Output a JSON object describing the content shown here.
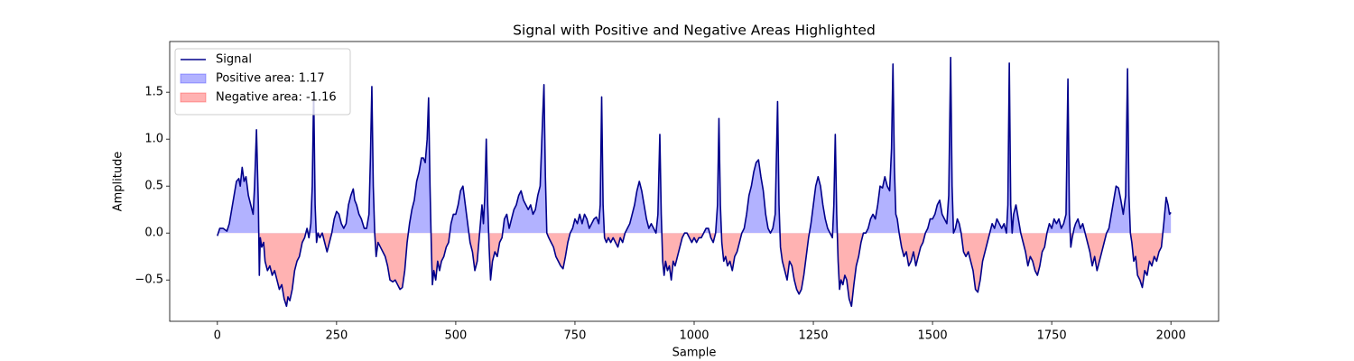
{
  "chart_data": {
    "type": "line",
    "title": "Signal with Positive and Negative Areas Highlighted",
    "x_label": "Sample",
    "y_label": "Amplitude",
    "xlim": [
      -100,
      2100
    ],
    "ylim": [
      -0.94,
      2.04
    ],
    "xticks": [
      0,
      250,
      500,
      750,
      1000,
      1250,
      1500,
      1750,
      2000
    ],
    "yticks": [
      {
        "value": -0.5,
        "label": "−0.5"
      },
      {
        "value": 0,
        "label": "0.0"
      },
      0.5,
      {
        "value": 1,
        "label": "1.0"
      },
      1.5
    ],
    "grid": false,
    "legend": "upper left",
    "series": [
      {
        "name": "Signal",
        "color": "#00008b",
        "x": [
          0,
          5,
          12,
          20,
          25,
          30,
          35,
          40,
          45,
          48,
          52,
          56,
          60,
          65,
          70,
          75,
          78,
          82,
          86,
          88,
          90,
          93,
          97,
          100,
          105,
          110,
          115,
          120,
          125,
          130,
          135,
          140,
          145,
          148,
          152,
          157,
          162,
          167,
          172,
          178,
          183,
          188,
          192,
          196,
          199,
          202,
          205,
          208,
          211,
          215,
          220,
          225,
          230,
          235,
          240,
          245,
          250,
          255,
          260,
          265,
          270,
          275,
          280,
          285,
          288,
          292,
          297,
          302,
          308,
          313,
          318,
          321,
          324,
          327,
          330,
          333,
          337,
          342,
          347,
          352,
          357,
          362,
          368,
          373,
          378,
          383,
          388,
          393,
          398,
          403,
          408,
          413,
          418,
          423,
          428,
          432,
          436,
          440,
          443,
          446,
          449,
          451,
          454,
          458,
          462,
          466,
          470,
          475,
          480,
          485,
          490,
          495,
          500,
          505,
          510,
          515,
          520,
          525,
          530,
          535,
          540,
          545,
          550,
          555,
          558,
          561,
          564,
          567,
          570,
          573,
          577,
          582,
          587,
          592,
          597,
          602,
          607,
          612,
          617,
          622,
          627,
          632,
          637,
          642,
          647,
          652,
          657,
          662,
          667,
          672,
          677,
          682,
          685,
          688,
          691,
          695,
          700,
          705,
          710,
          715,
          720,
          725,
          730,
          735,
          740,
          745,
          750,
          755,
          760,
          765,
          770,
          775,
          780,
          785,
          790,
          795,
          800,
          803,
          806,
          809,
          812,
          816,
          820,
          825,
          830,
          835,
          840,
          845,
          850,
          855,
          860,
          865,
          870,
          875,
          880,
          885,
          890,
          895,
          900,
          905,
          910,
          915,
          920,
          924,
          928,
          931,
          934,
          937,
          940,
          944,
          948,
          952,
          956,
          960,
          965,
          970,
          975,
          980,
          985,
          990,
          995,
          1000,
          1005,
          1010,
          1015,
          1020,
          1025,
          1030,
          1035,
          1040,
          1045,
          1049,
          1052,
          1055,
          1058,
          1062,
          1066,
          1070,
          1075,
          1080,
          1085,
          1090,
          1095,
          1100,
          1105,
          1110,
          1115,
          1120,
          1125,
          1130,
          1135,
          1140,
          1145,
          1150,
          1155,
          1160,
          1165,
          1170,
          1175,
          1178,
          1181,
          1185,
          1190,
          1195,
          1200,
          1205,
          1210,
          1215,
          1220,
          1225,
          1230,
          1235,
          1240,
          1245,
          1250,
          1255,
          1260,
          1265,
          1270,
          1275,
          1280,
          1285,
          1290,
          1293,
          1296,
          1299,
          1302,
          1305,
          1308,
          1312,
          1316,
          1320,
          1325,
          1330,
          1335,
          1340,
          1345,
          1350,
          1355,
          1360,
          1365,
          1370,
          1375,
          1380,
          1385,
          1390,
          1395,
          1400,
          1405,
          1410,
          1414,
          1417,
          1420,
          1423,
          1426,
          1430,
          1435,
          1440,
          1445,
          1450,
          1455,
          1460,
          1465,
          1470,
          1475,
          1480,
          1485,
          1490,
          1495,
          1500,
          1505,
          1510,
          1515,
          1520,
          1525,
          1530,
          1534,
          1538,
          1541,
          1544,
          1548,
          1552,
          1556,
          1560,
          1565,
          1570,
          1575,
          1580,
          1585,
          1590,
          1595,
          1600,
          1605,
          1610,
          1615,
          1620,
          1625,
          1630,
          1635,
          1640,
          1645,
          1650,
          1655,
          1658,
          1661,
          1664,
          1667,
          1670,
          1675,
          1680,
          1685,
          1690,
          1695,
          1700,
          1705,
          1710,
          1715,
          1720,
          1725,
          1730,
          1735,
          1740,
          1745,
          1750,
          1755,
          1760,
          1765,
          1770,
          1775,
          1780,
          1784,
          1787,
          1790,
          1793,
          1797,
          1800,
          1805,
          1810,
          1815,
          1820,
          1825,
          1830,
          1835,
          1840,
          1845,
          1850,
          1855,
          1860,
          1865,
          1870,
          1875,
          1880,
          1885,
          1890,
          1895,
          1900,
          1905,
          1909,
          1912,
          1915,
          1918,
          1922,
          1926,
          1930,
          1935,
          1940,
          1945,
          1950,
          1955,
          1960,
          1965,
          1970,
          1975,
          1980,
          1985,
          1990,
          1994,
          1997,
          2000
        ],
        "values": [
          -0.03,
          0.05,
          0.05,
          0.02,
          0.1,
          0.25,
          0.4,
          0.55,
          0.58,
          0.5,
          0.7,
          0.55,
          0.6,
          0.4,
          0.3,
          0.2,
          0.5,
          1.1,
          0.3,
          -0.45,
          -0.05,
          -0.15,
          -0.1,
          -0.3,
          -0.4,
          -0.35,
          -0.45,
          -0.4,
          -0.5,
          -0.6,
          -0.55,
          -0.7,
          -0.78,
          -0.68,
          -0.72,
          -0.6,
          -0.4,
          -0.3,
          -0.25,
          -0.1,
          -0.05,
          0.05,
          -0.05,
          0.1,
          0.5,
          1.5,
          0.3,
          -0.1,
          0.0,
          -0.05,
          0.0,
          -0.1,
          -0.2,
          -0.1,
          0.0,
          0.15,
          0.23,
          0.2,
          0.1,
          0.05,
          0.1,
          0.3,
          0.4,
          0.47,
          0.35,
          0.3,
          0.2,
          0.15,
          0.05,
          0.05,
          0.2,
          0.8,
          1.56,
          0.5,
          0.0,
          -0.25,
          -0.1,
          -0.15,
          -0.2,
          -0.25,
          -0.35,
          -0.5,
          -0.52,
          -0.5,
          -0.55,
          -0.6,
          -0.58,
          -0.4,
          -0.1,
          0.1,
          0.25,
          0.35,
          0.55,
          0.65,
          0.8,
          0.8,
          0.75,
          1.0,
          1.44,
          0.5,
          -0.2,
          -0.55,
          -0.4,
          -0.5,
          -0.3,
          -0.4,
          -0.3,
          -0.25,
          -0.15,
          -0.1,
          0.1,
          0.2,
          0.2,
          0.3,
          0.45,
          0.5,
          0.3,
          0.1,
          -0.1,
          -0.2,
          -0.4,
          -0.3,
          0.0,
          0.3,
          0.1,
          0.4,
          1.0,
          0.3,
          -0.15,
          -0.5,
          -0.3,
          -0.2,
          -0.25,
          -0.1,
          -0.05,
          0.15,
          0.2,
          0.05,
          0.15,
          0.25,
          0.3,
          0.4,
          0.45,
          0.35,
          0.3,
          0.25,
          0.3,
          0.2,
          0.25,
          0.4,
          0.5,
          1.2,
          1.58,
          0.6,
          0.0,
          -0.05,
          -0.1,
          -0.15,
          -0.25,
          -0.3,
          -0.35,
          -0.38,
          -0.25,
          -0.1,
          0.0,
          0.05,
          0.15,
          0.1,
          0.2,
          0.1,
          0.2,
          0.15,
          0.05,
          0.1,
          0.15,
          0.17,
          0.1,
          0.3,
          1.45,
          0.3,
          -0.05,
          -0.1,
          -0.05,
          -0.1,
          -0.05,
          -0.1,
          -0.15,
          -0.05,
          -0.1,
          0.0,
          0.05,
          0.1,
          0.2,
          0.3,
          0.45,
          0.55,
          0.45,
          0.3,
          0.15,
          0.05,
          0.1,
          0.05,
          0.0,
          0.2,
          1.05,
          0.2,
          -0.3,
          -0.45,
          -0.3,
          -0.4,
          -0.35,
          -0.5,
          -0.3,
          -0.35,
          -0.25,
          -0.15,
          -0.05,
          0.0,
          0.0,
          -0.05,
          -0.1,
          -0.05,
          -0.1,
          -0.05,
          -0.05,
          0.0,
          0.05,
          0.05,
          -0.05,
          -0.1,
          0.0,
          0.3,
          1.22,
          0.3,
          -0.1,
          -0.3,
          -0.25,
          -0.35,
          -0.3,
          -0.4,
          -0.25,
          -0.2,
          -0.1,
          0.0,
          0.05,
          0.2,
          0.4,
          0.5,
          0.65,
          0.75,
          0.78,
          0.6,
          0.45,
          0.2,
          0.05,
          0.0,
          0.05,
          0.2,
          1.4,
          0.3,
          -0.15,
          -0.3,
          -0.4,
          -0.5,
          -0.3,
          -0.35,
          -0.5,
          -0.6,
          -0.65,
          -0.6,
          -0.45,
          -0.25,
          -0.05,
          0.1,
          0.3,
          0.5,
          0.6,
          0.5,
          0.3,
          0.15,
          0.05,
          0.0,
          -0.05,
          0.3,
          1.05,
          0.2,
          -0.3,
          -0.6,
          -0.5,
          -0.55,
          -0.45,
          -0.5,
          -0.7,
          -0.78,
          -0.55,
          -0.35,
          -0.25,
          -0.1,
          0.0,
          0.0,
          0.05,
          0.15,
          0.2,
          0.15,
          0.3,
          0.5,
          0.48,
          0.6,
          0.5,
          0.45,
          0.9,
          1.8,
          0.7,
          0.2,
          0.15,
          0.0,
          -0.15,
          -0.25,
          -0.2,
          -0.35,
          -0.3,
          -0.2,
          -0.35,
          -0.25,
          -0.15,
          -0.1,
          0.0,
          0.05,
          0.15,
          0.15,
          0.2,
          0.3,
          0.35,
          0.2,
          0.15,
          0.1,
          0.4,
          1.87,
          0.5,
          0.0,
          0.05,
          0.15,
          0.1,
          0.0,
          -0.2,
          -0.25,
          -0.2,
          -0.3,
          -0.4,
          -0.6,
          -0.63,
          -0.5,
          -0.3,
          -0.2,
          -0.1,
          0.0,
          0.1,
          0.05,
          0.15,
          0.1,
          0.05,
          0.1,
          0.0,
          0.3,
          1.81,
          0.3,
          0.0,
          0.2,
          0.3,
          0.15,
          0.0,
          -0.1,
          -0.2,
          -0.35,
          -0.25,
          -0.3,
          -0.4,
          -0.45,
          -0.35,
          -0.2,
          -0.15,
          0.0,
          0.1,
          0.05,
          0.15,
          0.1,
          0.15,
          0.05,
          0.1,
          0.2,
          1.64,
          0.2,
          -0.15,
          -0.05,
          0.05,
          0.1,
          0.15,
          0.05,
          0.1,
          0.0,
          -0.1,
          -0.2,
          -0.35,
          -0.25,
          -0.4,
          -0.3,
          -0.2,
          -0.1,
          0.0,
          0.05,
          0.2,
          0.35,
          0.5,
          0.48,
          0.35,
          0.2,
          0.4,
          1.75,
          0.4,
          0.0,
          -0.1,
          -0.3,
          -0.25,
          -0.45,
          -0.5,
          -0.58,
          -0.4,
          -0.45,
          -0.3,
          -0.35,
          -0.25,
          -0.3,
          -0.2,
          -0.15,
          0.1,
          0.38,
          0.3,
          0.2,
          0.22
        ]
      }
    ],
    "areas": [
      {
        "name": "Positive area: 1.17",
        "color": "blue",
        "side": "positive"
      },
      {
        "name": "Negative area: -1.16",
        "color": "red",
        "side": "negative"
      }
    ]
  }
}
